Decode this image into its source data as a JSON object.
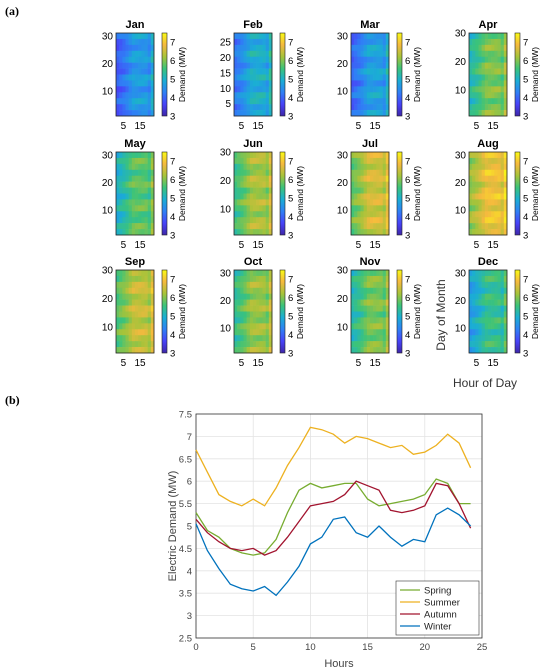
{
  "panel_labels": [
    "(a)",
    "(b)"
  ],
  "chart_data": [
    {
      "type": "heatmap",
      "panel": "(a)",
      "months": [
        "Jan",
        "Feb",
        "Mar",
        "Apr",
        "May",
        "Jun",
        "Jul",
        "Aug",
        "Sep",
        "Oct",
        "Nov",
        "Dec"
      ],
      "colorbar": {
        "label": "Demand (MW)",
        "ticks": [
          "3",
          "4",
          "5",
          "6",
          "7"
        ],
        "range": [
          3,
          7.5
        ]
      },
      "xticks": [
        "5",
        "15"
      ],
      "xlabel": "Hour of Day",
      "ylabel": "Day of Month",
      "yticks": {
        "default": [
          "10",
          "20",
          "30"
        ],
        "Feb": [
          "5",
          "10",
          "15",
          "20",
          "25"
        ]
      },
      "month_base_demand": [
        4.3,
        4.6,
        4.4,
        5.6,
        5.4,
        5.9,
        6.2,
        6.5,
        6.1,
        5.8,
        5.6,
        5.1
      ],
      "days_in_month": [
        31,
        28,
        31,
        30,
        31,
        30,
        31,
        31,
        30,
        31,
        30,
        31
      ],
      "colors": [
        "#3e26a8",
        "#4743f8",
        "#2f80f5",
        "#1aaed4",
        "#3bc37a",
        "#a6c33a",
        "#f5b93e",
        "#f9fb15"
      ]
    },
    {
      "type": "line",
      "panel": "(b)",
      "xlabel": "Hours",
      "ylabel": "Electric Demand (MW)",
      "xlim": [
        0,
        25
      ],
      "ylim": [
        2.5,
        7.5
      ],
      "xticks": [
        "0",
        "5",
        "10",
        "15",
        "20",
        "25"
      ],
      "yticks": [
        "2.5",
        "3",
        "3.5",
        "4",
        "4.5",
        "5",
        "5.5",
        "6",
        "6.5",
        "7",
        "7.5"
      ],
      "grid": true,
      "legend_position": "bottom-right",
      "x": [
        0,
        1,
        2,
        3,
        4,
        5,
        6,
        7,
        8,
        9,
        10,
        11,
        12,
        13,
        14,
        15,
        16,
        17,
        18,
        19,
        20,
        21,
        22,
        23,
        24
      ],
      "series": [
        {
          "name": "Spring",
          "color": "#77ac30",
          "values": [
            5.3,
            4.9,
            4.75,
            4.5,
            4.4,
            4.35,
            4.4,
            4.7,
            5.3,
            5.8,
            5.95,
            5.85,
            5.9,
            5.95,
            5.95,
            5.6,
            5.45,
            5.5,
            5.55,
            5.6,
            5.7,
            6.05,
            5.95,
            5.5,
            5.5
          ]
        },
        {
          "name": "Summer",
          "color": "#edb120",
          "values": [
            6.7,
            6.2,
            5.7,
            5.55,
            5.45,
            5.6,
            5.45,
            5.85,
            6.35,
            6.75,
            7.2,
            7.15,
            7.05,
            6.85,
            7.0,
            6.95,
            6.85,
            6.75,
            6.8,
            6.6,
            6.65,
            6.8,
            7.05,
            6.85,
            6.3
          ]
        },
        {
          "name": "Autumn",
          "color": "#a2142f",
          "values": [
            5.15,
            4.85,
            4.65,
            4.5,
            4.45,
            4.5,
            4.35,
            4.45,
            4.75,
            5.1,
            5.45,
            5.5,
            5.55,
            5.7,
            6.0,
            5.9,
            5.8,
            5.35,
            5.3,
            5.35,
            5.45,
            5.95,
            5.9,
            5.5,
            4.95
          ]
        },
        {
          "name": "Winter",
          "color": "#0072bd",
          "values": [
            5.05,
            4.45,
            4.05,
            3.7,
            3.6,
            3.55,
            3.65,
            3.45,
            3.75,
            4.1,
            4.6,
            4.75,
            5.15,
            5.2,
            4.85,
            4.75,
            5.0,
            4.75,
            4.55,
            4.7,
            4.65,
            5.25,
            5.4,
            5.25,
            5.0
          ]
        }
      ]
    }
  ]
}
